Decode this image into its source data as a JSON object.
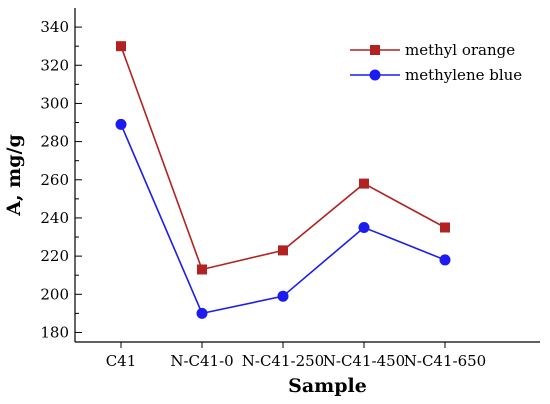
{
  "chart_data": {
    "type": "line",
    "categories": [
      "C41",
      "N-C41-0",
      "N-C41-250",
      "N-C41-450",
      "N-C41-650"
    ],
    "series": [
      {
        "name": "methyl orange",
        "values": [
          330,
          213,
          223,
          258,
          235
        ],
        "color": "#b22222",
        "marker": "square"
      },
      {
        "name": "methylene blue",
        "values": [
          289,
          190,
          199,
          235,
          218
        ],
        "color": "#1c1cf0",
        "marker": "circle"
      }
    ],
    "xlabel": "Sample",
    "ylabel": "A, mg/g",
    "ylim": [
      175,
      350
    ],
    "yticks": [
      180,
      200,
      220,
      240,
      260,
      280,
      300,
      320,
      340
    ],
    "grid": false,
    "legend_position": "top-right"
  }
}
